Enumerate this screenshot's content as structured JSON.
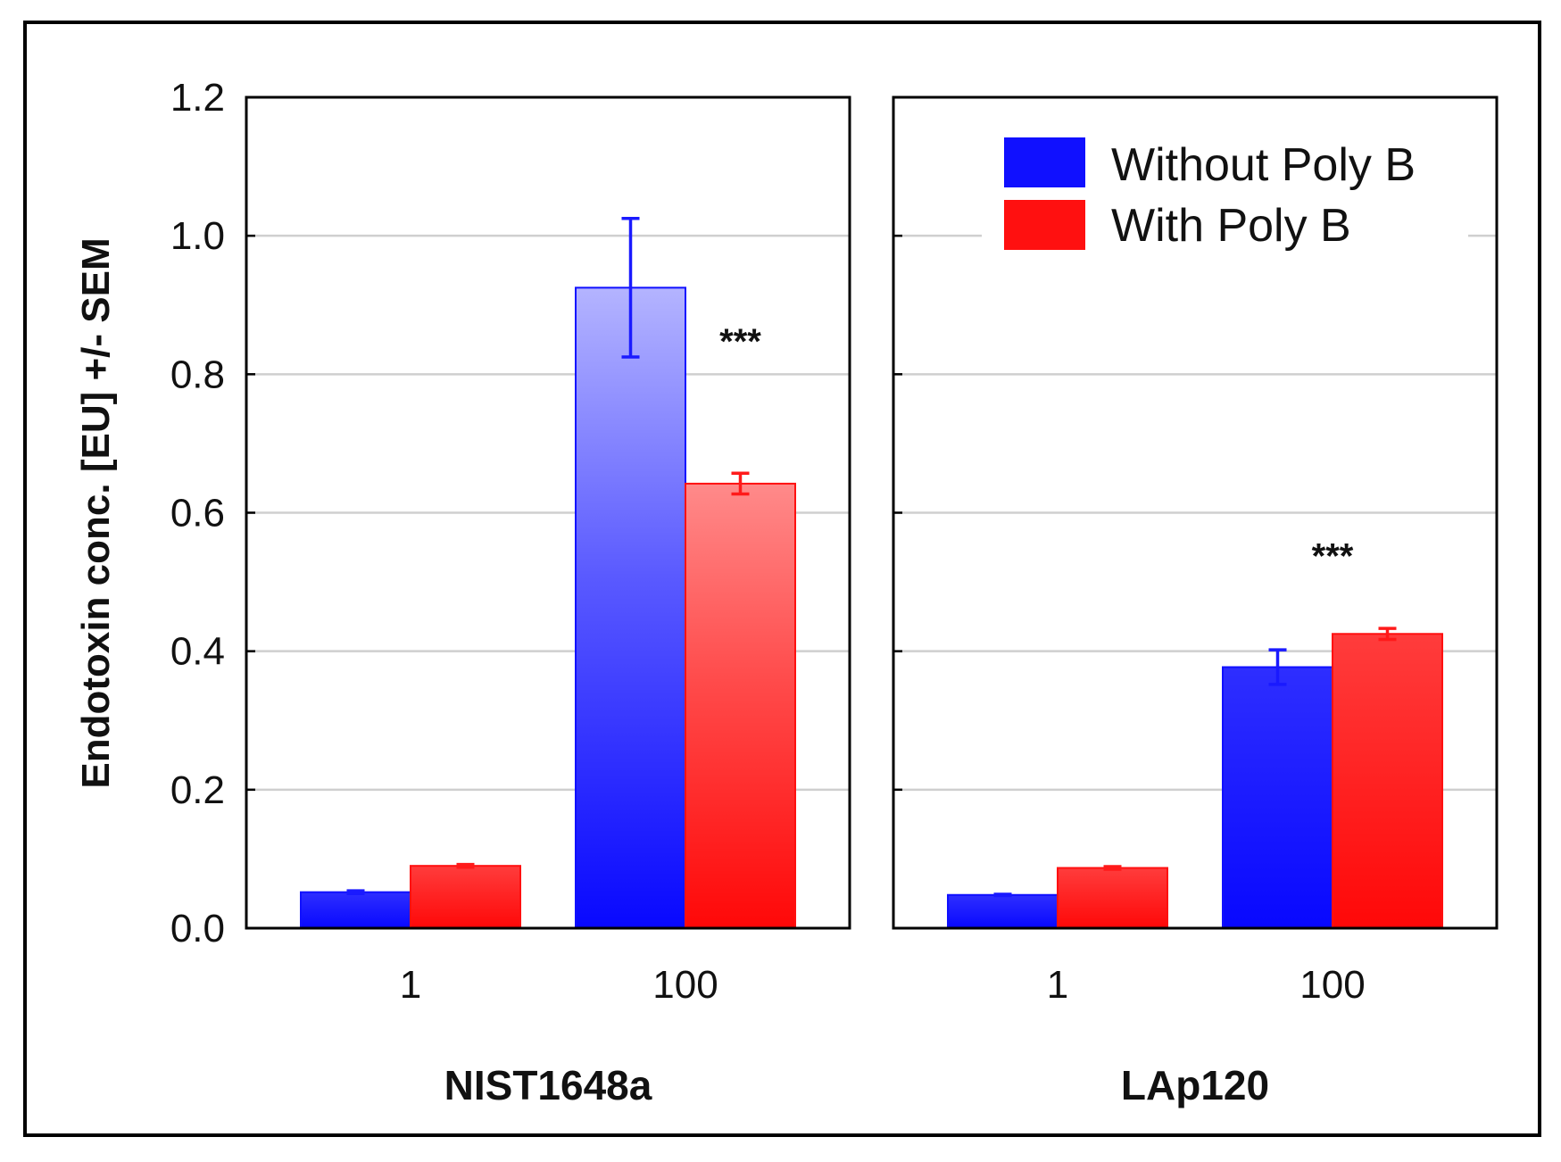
{
  "chart_data": {
    "type": "bar",
    "ylabel": "Endotoxin conc. [EU] +/- SEM",
    "ylim": [
      0,
      1.2
    ],
    "yticks": [
      "0.0",
      "0.2",
      "0.4",
      "0.6",
      "0.8",
      "1.0",
      "1.2"
    ],
    "grid": true,
    "legend": {
      "placement": "top-right",
      "entries": [
        "Without Poly B",
        "With Poly B"
      ]
    },
    "colors": {
      "without": "#1010ff",
      "with": "#ff1010"
    },
    "panels": [
      {
        "group_label": "NIST1648a",
        "categories": [
          "1",
          "100"
        ],
        "series": [
          {
            "name": "Without Poly B",
            "values": [
              0.052,
              0.925
            ],
            "errors": [
              0.002,
              0.1
            ]
          },
          {
            "name": "With Poly B",
            "values": [
              0.09,
              0.642
            ],
            "errors": [
              0.002,
              0.015
            ]
          }
        ],
        "annotations": [
          {
            "text": "***",
            "category": "100",
            "value": 0.83
          }
        ]
      },
      {
        "group_label": "LAp120",
        "categories": [
          "1",
          "100"
        ],
        "series": [
          {
            "name": "Without Poly B",
            "values": [
              0.048,
              0.377
            ],
            "errors": [
              0.001,
              0.025
            ]
          },
          {
            "name": "With Poly B",
            "values": [
              0.087,
              0.425
            ],
            "errors": [
              0.002,
              0.008
            ]
          }
        ],
        "annotations": [
          {
            "text": "***",
            "category": "100",
            "value": 0.52
          }
        ]
      }
    ]
  }
}
